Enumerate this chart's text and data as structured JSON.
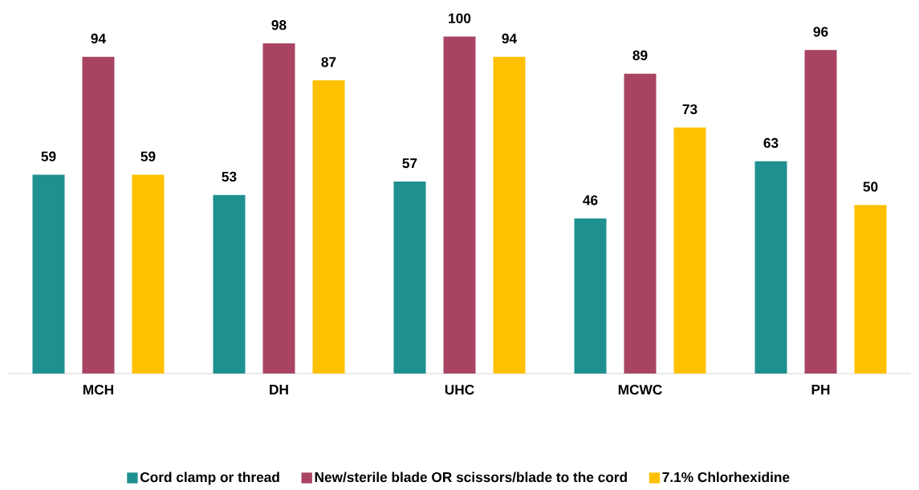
{
  "chart_data": {
    "type": "bar",
    "categories": [
      "MCH",
      "DH",
      "UHC",
      "MCWC",
      "PH"
    ],
    "series": [
      {
        "name": "Cord clamp or thread",
        "color": "#1f9090",
        "values": [
          59,
          53,
          57,
          46,
          63
        ]
      },
      {
        "name": "New/sterile blade OR scissors/blade to the cord",
        "color": "#a84462",
        "values": [
          94,
          98,
          100,
          89,
          96
        ]
      },
      {
        "name": "7.1% Chlorhexidine",
        "color": "#ffc000",
        "values": [
          59,
          87,
          94,
          73,
          50
        ]
      }
    ],
    "data_labels": true,
    "legend": "bottom"
  }
}
